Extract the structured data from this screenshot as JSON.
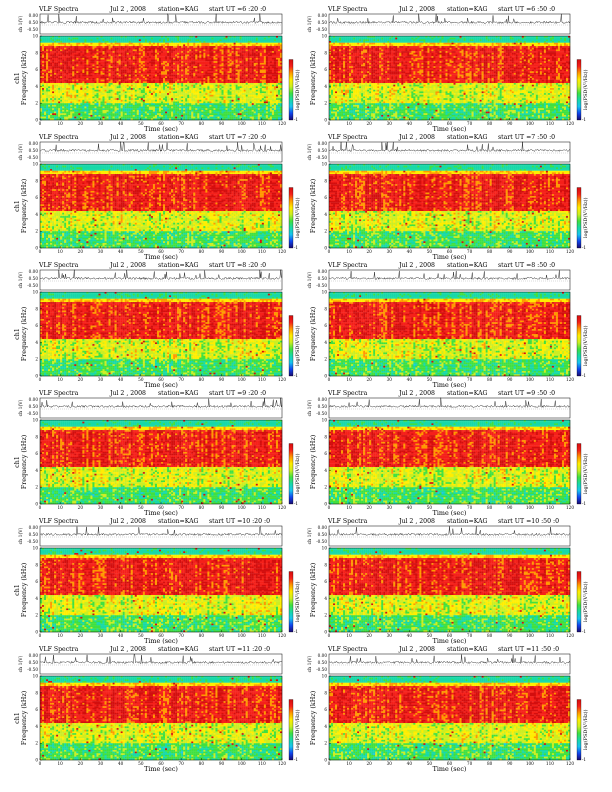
{
  "chart_data": {
    "type": "heatmap",
    "figure_type": "VLF spectrogram grid",
    "colorscale": [
      "#1a0a6e",
      "#1144ee",
      "#19c3f0",
      "#18d9a8",
      "#40e040",
      "#ccee22",
      "#ffee00",
      "#ff9900",
      "#f5201a",
      "#d30e0e",
      "#ffffff"
    ],
    "panels": [
      {
        "title": {
          "left": "VLF  Spectra",
          "date": "Jul 2 , 2008",
          "station": "station=KAG",
          "start": "start  UT  =6 :20 :0"
        },
        "ylabel_top": "ch 1(V)",
        "ytick_top": [
          "0.00",
          "0.50",
          "-0.50"
        ],
        "ylabel": "ch1\nFrequency  (kHz)",
        "yticks": [
          "10",
          "8",
          "6",
          "4",
          "2",
          "0"
        ],
        "xticks": [
          "0",
          "10",
          "20",
          "30",
          "40",
          "50",
          "60",
          "70",
          "80",
          "90",
          "100",
          "110",
          "120"
        ],
        "xlabel": "Time  (sec)",
        "colorbar_label": "log(PSD(V²/Hz))",
        "colorbar_ticks": [
          "-1"
        ],
        "x_range": [
          0,
          120
        ],
        "y_range": [
          0,
          10
        ]
      },
      {
        "title": {
          "left": "VLF  Spectra",
          "date": "Jul 2 , 2008",
          "station": "station=KAG",
          "start": "start  UT  =6 :50 :0"
        },
        "ylabel_top": "ch 1(V)",
        "ytick_top": [
          "0.00",
          "0.50",
          "-0.50"
        ],
        "ylabel": "Frequency  (kHz)",
        "yticks": [
          "10",
          "8",
          "6",
          "4",
          "2",
          "0"
        ],
        "xticks": [
          "0",
          "10",
          "20",
          "30",
          "40",
          "50",
          "60",
          "70",
          "80",
          "90",
          "100",
          "110",
          "120"
        ],
        "xlabel": "Time  (sec)",
        "colorbar_label": "log(PSD(V²/Hz))",
        "colorbar_ticks": [
          "-1"
        ],
        "x_range": [
          0,
          120
        ],
        "y_range": [
          0,
          10
        ]
      },
      {
        "title": {
          "left": "VLF  Spectra",
          "date": "Jul 2 , 2008",
          "station": "station=KAG",
          "start": "start  UT  =7 :20 :0"
        },
        "ylabel_top": "ch 1(V)",
        "ytick_top": [
          "0.00",
          "0.50",
          "-0.50"
        ],
        "ylabel": "ch1\nFrequency  (kHz)",
        "yticks": [
          "10",
          "8",
          "6",
          "4",
          "2",
          "0"
        ],
        "xticks": [
          "0",
          "10",
          "20",
          "30",
          "40",
          "50",
          "60",
          "70",
          "80",
          "90",
          "100",
          "110",
          "120"
        ],
        "xlabel": "Time  (sec)",
        "colorbar_label": "log(PSD(V²/Hz))",
        "colorbar_ticks": [
          "-1"
        ],
        "x_range": [
          0,
          120
        ],
        "y_range": [
          0,
          10
        ]
      },
      {
        "title": {
          "left": "VLF  Spectra",
          "date": "Jul 2 , 2008",
          "station": "station=KAG",
          "start": "start  UT  =7 :50 :0"
        },
        "ylabel_top": "ch 1(V)",
        "ytick_top": [
          "0.00",
          "0.50",
          "-0.50"
        ],
        "ylabel": "Frequency  (kHz)",
        "yticks": [
          "10",
          "8",
          "6",
          "4",
          "2",
          "0"
        ],
        "xticks": [
          "0",
          "10",
          "20",
          "30",
          "40",
          "50",
          "60",
          "70",
          "80",
          "90",
          "100",
          "110",
          "120"
        ],
        "xlabel": "Time  (sec)",
        "colorbar_label": "log(PSD(V²/Hz))",
        "colorbar_ticks": [
          "-1"
        ],
        "x_range": [
          0,
          120
        ],
        "y_range": [
          0,
          10
        ]
      },
      {
        "title": {
          "left": "VLF  Spectra",
          "date": "Jul 2 , 2008",
          "station": "station=KAG",
          "start": "start  UT  =8 :20 :0"
        },
        "ylabel_top": "ch 1(V)",
        "ytick_top": [
          "0.00",
          "0.50",
          "-0.50"
        ],
        "ylabel": "ch1\nFrequency  (kHz)",
        "yticks": [
          "10",
          "8",
          "6",
          "4",
          "2",
          "0"
        ],
        "xticks": [
          "0",
          "10",
          "20",
          "30",
          "40",
          "50",
          "60",
          "70",
          "80",
          "90",
          "100",
          "110",
          "120"
        ],
        "xlabel": "Time  (sec)",
        "colorbar_label": "log(PSD(V²/Hz))",
        "colorbar_ticks": [
          "-1"
        ],
        "x_range": [
          0,
          120
        ],
        "y_range": [
          0,
          10
        ]
      },
      {
        "title": {
          "left": "VLF  Spectra",
          "date": "Jul 2 , 2008",
          "station": "station=KAG",
          "start": "start  UT  =8 :50 :0"
        },
        "ylabel_top": "ch 1(V)",
        "ytick_top": [
          "0.00",
          "0.50",
          "-0.50"
        ],
        "ylabel": "Frequency  (kHz)",
        "yticks": [
          "10",
          "8",
          "6",
          "4",
          "2",
          "0"
        ],
        "xticks": [
          "0",
          "10",
          "20",
          "30",
          "40",
          "50",
          "60",
          "70",
          "80",
          "90",
          "100",
          "110",
          "120"
        ],
        "xlabel": "Time  (sec)",
        "colorbar_label": "log(PSD(V²/Hz))",
        "colorbar_ticks": [
          "-1"
        ],
        "x_range": [
          0,
          120
        ],
        "y_range": [
          0,
          10
        ]
      },
      {
        "title": {
          "left": "VLF  Spectra",
          "date": "Jul 2 , 2008",
          "station": "station=KAG",
          "start": "start  UT  =9 :20 :0"
        },
        "ylabel_top": "ch 1(V)",
        "ytick_top": [
          "0.00",
          "0.50",
          "-0.50"
        ],
        "ylabel": "ch1\nFrequency  (kHz)",
        "yticks": [
          "10",
          "8",
          "6",
          "4",
          "2",
          "0"
        ],
        "xticks": [
          "0",
          "10",
          "20",
          "30",
          "40",
          "50",
          "60",
          "70",
          "80",
          "90",
          "100",
          "110",
          "120"
        ],
        "xlabel": "Time  (sec)",
        "colorbar_label": "log(PSD(V²/Hz))",
        "colorbar_ticks": [
          "-1"
        ],
        "x_range": [
          0,
          120
        ],
        "y_range": [
          0,
          10
        ]
      },
      {
        "title": {
          "left": "VLF  Spectra",
          "date": "Jul 2 , 2008",
          "station": "station=KAG",
          "start": "start  UT  =9 :50 :0"
        },
        "ylabel_top": "ch 1(V)",
        "ytick_top": [
          "0.00",
          "0.50",
          "-0.50"
        ],
        "ylabel": "Frequency  (kHz)",
        "yticks": [
          "10",
          "8",
          "6",
          "4",
          "2",
          "0"
        ],
        "xticks": [
          "0",
          "10",
          "20",
          "30",
          "40",
          "50",
          "60",
          "70",
          "80",
          "90",
          "100",
          "110",
          "120"
        ],
        "xlabel": "Time  (sec)",
        "colorbar_label": "log(PSD(V²/Hz))",
        "colorbar_ticks": [
          "-1"
        ],
        "x_range": [
          0,
          120
        ],
        "y_range": [
          0,
          10
        ]
      },
      {
        "title": {
          "left": "VLF  Spectra",
          "date": "Jul 2 , 2008",
          "station": "station=KAG",
          "start": "start  UT  =10 :20 :0"
        },
        "ylabel_top": "ch 1(V)",
        "ytick_top": [
          "0.00",
          "0.50",
          "-0.50"
        ],
        "ylabel": "ch1\nFrequency  (kHz)",
        "yticks": [
          "10",
          "8",
          "6",
          "4",
          "2",
          "0"
        ],
        "xticks": [
          "0",
          "10",
          "20",
          "30",
          "40",
          "50",
          "60",
          "70",
          "80",
          "90",
          "100",
          "110",
          "120"
        ],
        "xlabel": "Time  (sec)",
        "colorbar_label": "log(PSD(V²/Hz))",
        "colorbar_ticks": [
          "-1"
        ],
        "x_range": [
          0,
          120
        ],
        "y_range": [
          0,
          10
        ]
      },
      {
        "title": {
          "left": "VLF  Spectra",
          "date": "Jul 2 , 2008",
          "station": "station=KAG",
          "start": "start  UT  =10 :50 :0"
        },
        "ylabel_top": "ch 1(V)",
        "ytick_top": [
          "0.00",
          "0.50",
          "-0.50"
        ],
        "ylabel": "Frequency  (kHz)",
        "yticks": [
          "10",
          "8",
          "6",
          "4",
          "2",
          "0"
        ],
        "xticks": [
          "0",
          "10",
          "20",
          "30",
          "40",
          "50",
          "60",
          "70",
          "80",
          "90",
          "100",
          "110",
          "120"
        ],
        "xlabel": "Time  (sec)",
        "colorbar_label": "log(PSD(V²/Hz))",
        "colorbar_ticks": [
          "-1"
        ],
        "x_range": [
          0,
          120
        ],
        "y_range": [
          0,
          10
        ]
      },
      {
        "title": {
          "left": "VLF  Spectra",
          "date": "Jul 2 , 2008",
          "station": "station=KAG",
          "start": "start  UT  =11 :20 :0"
        },
        "ylabel_top": "ch 1(V)",
        "ytick_top": [
          "0.00",
          "0.50",
          "-0.50"
        ],
        "ylabel": "ch1\nFrequency  (kHz)",
        "yticks": [
          "10",
          "8",
          "6",
          "4",
          "2",
          "0"
        ],
        "xticks": [
          "0",
          "10",
          "20",
          "30",
          "40",
          "50",
          "60",
          "70",
          "80",
          "90",
          "100",
          "110",
          "120"
        ],
        "xlabel": "Time  (sec)",
        "colorbar_label": "log(PSD(V²/Hz))",
        "colorbar_ticks": [
          "-1"
        ],
        "x_range": [
          0,
          120
        ],
        "y_range": [
          0,
          10
        ]
      },
      {
        "title": {
          "left": "VLF  Spectra",
          "date": "Jul 2 , 2008",
          "station": "station=KAG",
          "start": "start  UT  =11 :50 :0"
        },
        "ylabel_top": "ch 1(V)",
        "ytick_top": [
          "0.00",
          "0.50",
          "-0.50"
        ],
        "ylabel": "Frequency  (kHz)",
        "yticks": [
          "10",
          "8",
          "6",
          "4",
          "2",
          "0"
        ],
        "xticks": [
          "0",
          "10",
          "20",
          "30",
          "40",
          "50",
          "60",
          "70",
          "80",
          "90",
          "100",
          "110",
          "120"
        ],
        "xlabel": "Time  (sec)",
        "colorbar_label": "log(PSD(V²/Hz))",
        "colorbar_ticks": [
          "-1"
        ],
        "x_range": [
          0,
          120
        ],
        "y_range": [
          0,
          10
        ]
      }
    ]
  }
}
